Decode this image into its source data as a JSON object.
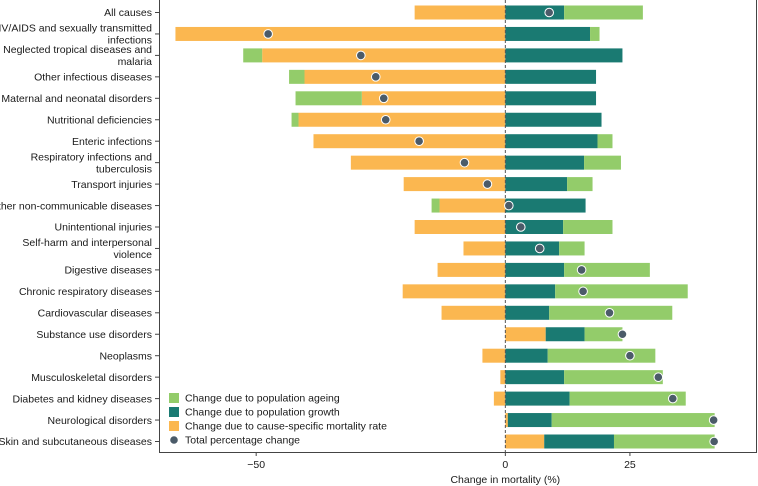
{
  "chart_data": {
    "type": "bar",
    "orientation": "horizontal",
    "stacked": true,
    "xlabel": "Change in mortality (%)",
    "xlim": [
      -69.5,
      50.5
    ],
    "xticks": [
      -50,
      0,
      25
    ],
    "xtick_labels": [
      "−50",
      "0",
      "25"
    ],
    "zero_line": "dashed",
    "legend_position": "bottom-left",
    "colors": {
      "ageing": "#93cc6a",
      "growth": "#1a7a72",
      "rate": "#fbb750",
      "total": "#4b5b69",
      "total_edge": "#ffffff"
    },
    "legend": [
      {
        "key": "ageing",
        "label": "Change due to population ageing",
        "shape": "square"
      },
      {
        "key": "growth",
        "label": "Change due to population growth",
        "shape": "square"
      },
      {
        "key": "rate",
        "label": "Change due to cause-specific mortality rate",
        "shape": "square"
      },
      {
        "key": "total",
        "label": "Total percentage change",
        "shape": "circle"
      }
    ],
    "categories": [
      [
        "All causes"
      ],
      [
        "HIV/AIDS and sexually transmitted",
        "infections"
      ],
      [
        "Neglected tropical diseases and",
        "malaria"
      ],
      [
        "Other infectious diseases"
      ],
      [
        "Maternal and neonatal disorders"
      ],
      [
        "Nutritional deficiencies"
      ],
      [
        "Enteric infections"
      ],
      [
        "Respiratory infections and",
        "tuberculosis"
      ],
      [
        "Transport injuries"
      ],
      [
        "Other non-communicable diseases"
      ],
      [
        "Unintentional injuries"
      ],
      [
        "Self-harm and interpersonal",
        "violence"
      ],
      [
        "Digestive diseases"
      ],
      [
        "Chronic respiratory diseases"
      ],
      [
        "Cardiovascular diseases"
      ],
      [
        "Substance use disorders"
      ],
      [
        "Neoplasms"
      ],
      [
        "Musculoskeletal disorders"
      ],
      [
        "Diabetes and kidney diseases"
      ],
      [
        "Neurological disorders"
      ],
      [
        "Skin and subcutaneous diseases"
      ]
    ],
    "segments": [
      [
        {
          "s": "rate",
          "from": 0,
          "to": -18.2
        },
        {
          "s": "growth",
          "from": 0,
          "to": 11.8
        },
        {
          "s": "ageing",
          "from": 11.8,
          "to": 27.6
        }
      ],
      [
        {
          "s": "rate",
          "from": 0,
          "to": -66.2
        },
        {
          "s": "growth",
          "from": 0,
          "to": 17.0
        },
        {
          "s": "ageing",
          "from": 17.0,
          "to": 18.9
        }
      ],
      [
        {
          "s": "rate",
          "from": 0,
          "to": -48.8
        },
        {
          "s": "ageing",
          "from": -48.8,
          "to": -52.6
        },
        {
          "s": "growth",
          "from": 0,
          "to": 23.5
        }
      ],
      [
        {
          "s": "rate",
          "from": 0,
          "to": -40.3
        },
        {
          "s": "ageing",
          "from": -40.3,
          "to": -43.4
        },
        {
          "s": "growth",
          "from": 0,
          "to": 18.2
        }
      ],
      [
        {
          "s": "rate",
          "from": 0,
          "to": -28.8
        },
        {
          "s": "ageing",
          "from": -28.8,
          "to": -42.1
        },
        {
          "s": "growth",
          "from": 0,
          "to": 18.2
        }
      ],
      [
        {
          "s": "rate",
          "from": 0,
          "to": -41.5
        },
        {
          "s": "ageing",
          "from": -41.5,
          "to": -42.9
        },
        {
          "s": "growth",
          "from": 0,
          "to": 19.3
        }
      ],
      [
        {
          "s": "rate",
          "from": 0,
          "to": -38.5
        },
        {
          "s": "growth",
          "from": 0,
          "to": 18.5
        },
        {
          "s": "ageing",
          "from": 18.5,
          "to": 21.5
        }
      ],
      [
        {
          "s": "rate",
          "from": 0,
          "to": -31.0
        },
        {
          "s": "growth",
          "from": 0,
          "to": 15.8
        },
        {
          "s": "ageing",
          "from": 15.8,
          "to": 23.2
        }
      ],
      [
        {
          "s": "rate",
          "from": 0,
          "to": -20.4
        },
        {
          "s": "growth",
          "from": 0,
          "to": 12.4
        },
        {
          "s": "ageing",
          "from": 12.4,
          "to": 17.5
        }
      ],
      [
        {
          "s": "rate",
          "from": 0,
          "to": -13.2
        },
        {
          "s": "ageing",
          "from": -13.2,
          "to": -14.8
        },
        {
          "s": "growth",
          "from": 0,
          "to": 16.1
        }
      ],
      [
        {
          "s": "rate",
          "from": 0,
          "to": -18.2
        },
        {
          "s": "growth",
          "from": 0,
          "to": 11.6
        },
        {
          "s": "ageing",
          "from": 11.6,
          "to": 21.5
        }
      ],
      [
        {
          "s": "rate",
          "from": 0,
          "to": -8.4
        },
        {
          "s": "growth",
          "from": 0,
          "to": 10.8
        },
        {
          "s": "ageing",
          "from": 10.8,
          "to": 15.9
        }
      ],
      [
        {
          "s": "rate",
          "from": 0,
          "to": -13.6
        },
        {
          "s": "growth",
          "from": 0,
          "to": 11.8
        },
        {
          "s": "ageing",
          "from": 11.8,
          "to": 29.0
        }
      ],
      [
        {
          "s": "rate",
          "from": 0,
          "to": -20.6
        },
        {
          "s": "growth",
          "from": 0,
          "to": 10.0
        },
        {
          "s": "ageing",
          "from": 10.0,
          "to": 36.6
        }
      ],
      [
        {
          "s": "rate",
          "from": 0,
          "to": -12.8
        },
        {
          "s": "growth",
          "from": 0,
          "to": 8.8
        },
        {
          "s": "ageing",
          "from": 8.8,
          "to": 33.5
        }
      ],
      [
        {
          "s": "rate",
          "from": 0,
          "to": 8.1
        },
        {
          "s": "growth",
          "from": 8.1,
          "to": 15.9
        },
        {
          "s": "ageing",
          "from": 15.9,
          "to": 23.5
        }
      ],
      [
        {
          "s": "rate",
          "from": 0,
          "to": -4.6
        },
        {
          "s": "growth",
          "from": 0,
          "to": 8.5
        },
        {
          "s": "ageing",
          "from": 8.5,
          "to": 30.1
        }
      ],
      [
        {
          "s": "rate",
          "from": 0,
          "to": -1.0
        },
        {
          "s": "growth",
          "from": 0,
          "to": 11.8
        },
        {
          "s": "ageing",
          "from": 11.8,
          "to": 31.6
        }
      ],
      [
        {
          "s": "rate",
          "from": 0,
          "to": -2.3
        },
        {
          "s": "growth",
          "from": 0,
          "to": 12.9
        },
        {
          "s": "ageing",
          "from": 12.9,
          "to": 36.2
        }
      ],
      [
        {
          "s": "rate",
          "from": 0,
          "to": 0.5
        },
        {
          "s": "growth",
          "from": 0.5,
          "to": 9.3
        },
        {
          "s": "ageing",
          "from": 9.3,
          "to": 42.0
        }
      ],
      [
        {
          "s": "rate",
          "from": 0,
          "to": 7.8
        },
        {
          "s": "growth",
          "from": 7.8,
          "to": 21.8
        },
        {
          "s": "ageing",
          "from": 21.8,
          "to": 42.0
        }
      ]
    ],
    "totals": [
      8.8,
      -47.6,
      -29.0,
      -26.0,
      -24.4,
      -24.0,
      -17.3,
      -8.2,
      -3.6,
      0.7,
      3.1,
      6.9,
      15.3,
      15.6,
      20.9,
      23.5,
      25.0,
      30.7,
      33.6,
      41.8,
      41.9
    ]
  }
}
